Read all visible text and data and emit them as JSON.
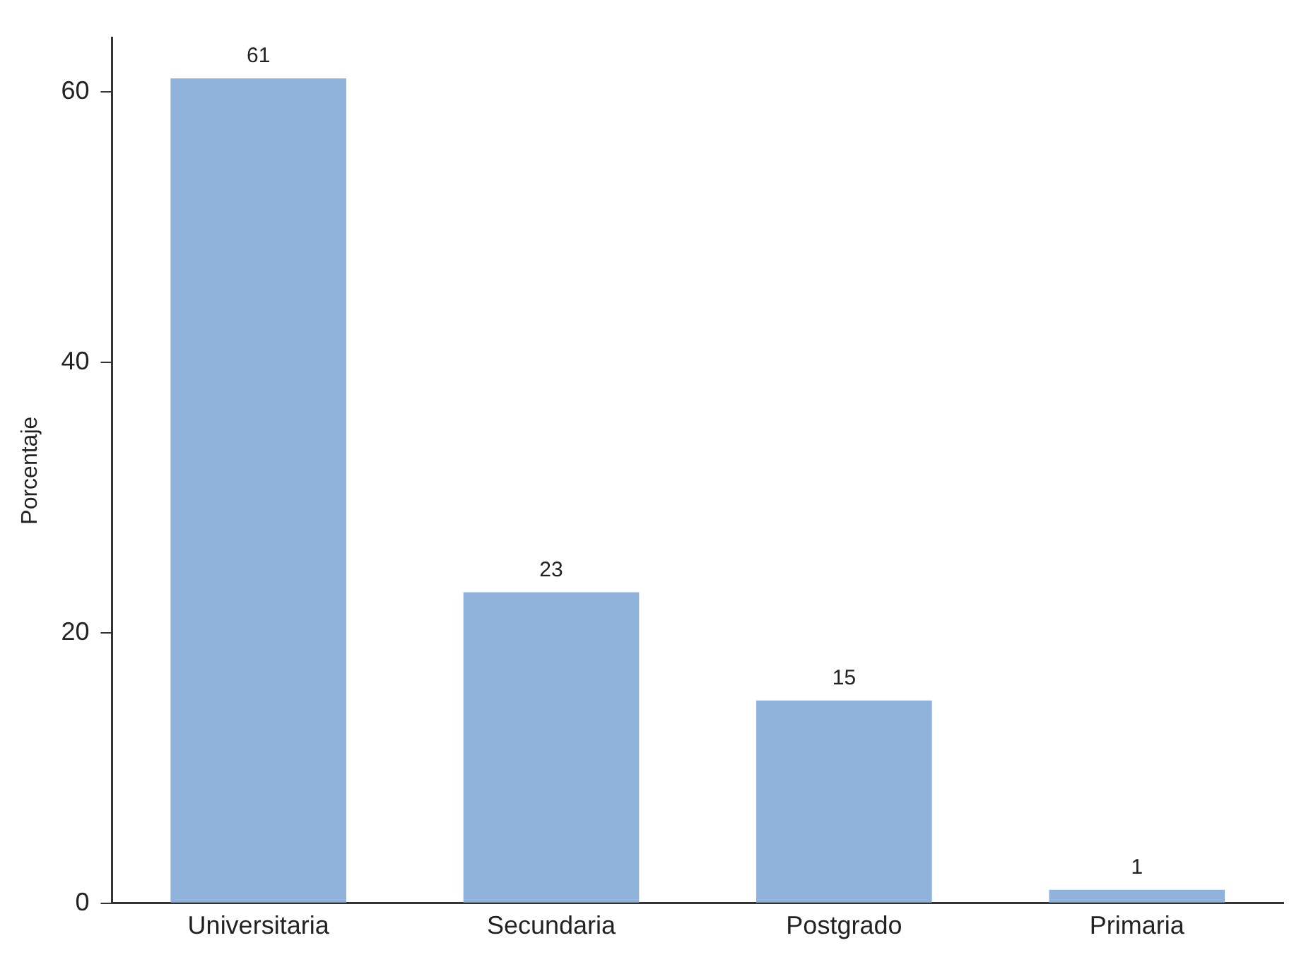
{
  "chart_data": {
    "type": "bar",
    "ylabel": "Porcentaje",
    "categories": [
      "Universitaria",
      "Secundaria",
      "Postgrado",
      "Primaria"
    ],
    "values": [
      61,
      23,
      15,
      1
    ],
    "color": "#8fb3da",
    "ylim": [
      0,
      64
    ],
    "yticks": [
      0,
      20,
      40,
      60
    ],
    "grid": false,
    "data_labels": true
  }
}
